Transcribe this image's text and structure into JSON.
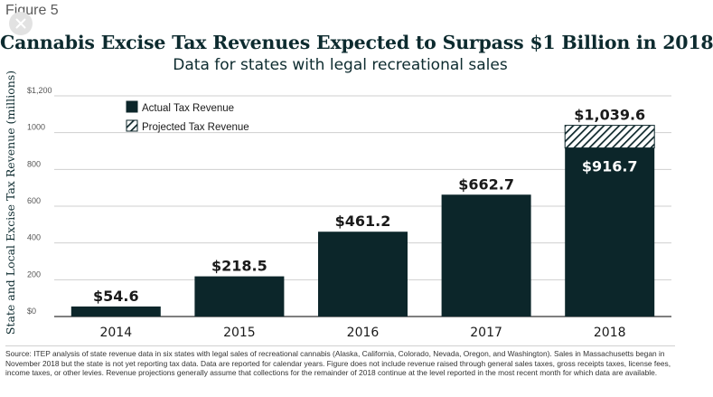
{
  "figure_label": "Figure 5",
  "close_icon": "close-icon",
  "colors": {
    "actual": "#0c262a",
    "projected_stripe": "#0c262a",
    "axis_text": "#555555",
    "title": "#0d2b2f"
  },
  "chart_data": {
    "type": "bar",
    "title": "Cannabis Excise Tax Revenues Expected to Surpass $1 Billion in 2018",
    "subtitle": "Data for states with legal recreational sales",
    "ylabel": "State and Local Excise Tax Revenue (millions)",
    "xlabel": "",
    "ylim": [
      0,
      1200
    ],
    "yticks": [
      0,
      200,
      400,
      600,
      800,
      1000,
      1200
    ],
    "ytick_labels": [
      "$0",
      "200",
      "400",
      "600",
      "800",
      "1000",
      "$1,200"
    ],
    "grid": true,
    "legend_position": "top-left",
    "categories": [
      "2014",
      "2015",
      "2016",
      "2017",
      "2018"
    ],
    "series": [
      {
        "name": "Actual Tax Revenue",
        "values": [
          54.6,
          218.5,
          461.2,
          662.7,
          916.7
        ],
        "pattern": "solid"
      },
      {
        "name": "Projected Tax Revenue",
        "values": [
          0,
          0,
          0,
          0,
          122.9
        ],
        "pattern": "hatched"
      }
    ],
    "data_labels": [
      "$54.6",
      "$218.5",
      "$461.2",
      "$662.7",
      "$916.7"
    ],
    "total_labels": [
      "",
      "",
      "",
      "",
      "$1,039.6"
    ]
  },
  "source_text": "Source: ITEP analysis of state revenue data in six states with legal sales of recreational cannabis (Alaska, California, Colorado, Nevada, Oregon, and Washington). Sales in Massachusetts began in November 2018 but the state is not yet reporting tax data. Data are reported for calendar years. Figure does not include revenue raised through general sales taxes, gross receipts taxes, license fees, income taxes, or other levies. Revenue projections generally assume that collections for the remainder of 2018 continue at the level reported in the most recent month for which data are available."
}
